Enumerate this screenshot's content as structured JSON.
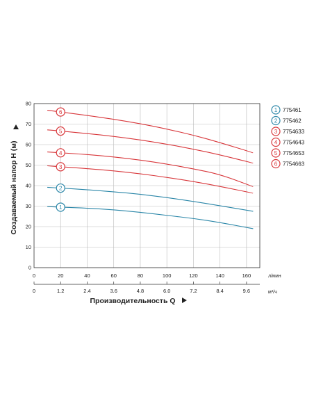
{
  "chart_data": {
    "type": "line",
    "title": "",
    "ylabel": "Создаваемый напор H (м)",
    "xlabel": "Производительность Q",
    "xunit_primary": "л/мин",
    "xunit_secondary": "м³/ч",
    "ylim": [
      0,
      80
    ],
    "xlim": [
      0,
      170
    ],
    "grid": true,
    "legend_position": "right",
    "y_ticks": [
      "0",
      "10",
      "20",
      "30",
      "40",
      "50",
      "60",
      "70",
      "80"
    ],
    "x_ticks_primary": [
      "0",
      "20",
      "40",
      "60",
      "80",
      "100",
      "120",
      "140",
      "160"
    ],
    "x_ticks_secondary": [
      "0",
      "1.2",
      "2.4",
      "3.6",
      "4.8",
      "6.0",
      "7.2",
      "8.4",
      "9.6"
    ],
    "x": [
      20,
      40,
      60,
      80,
      100,
      120,
      140,
      165
    ],
    "series": [
      {
        "name": "775461",
        "badge": "1",
        "color": "#2a86a8",
        "values": [
          29.5,
          29,
          28.2,
          27,
          25.5,
          24,
          22,
          19
        ]
      },
      {
        "name": "775462",
        "badge": "2",
        "color": "#2a86a8",
        "values": [
          38.8,
          38,
          37,
          35.8,
          34.2,
          32.3,
          30.2,
          27.5
        ]
      },
      {
        "name": "7754633",
        "badge": "3",
        "color": "#d8363a",
        "values": [
          49.2,
          48.3,
          47.2,
          45.8,
          44,
          42,
          39.6,
          36.3
        ]
      },
      {
        "name": "7754643",
        "badge": "4",
        "color": "#d8363a",
        "values": [
          56,
          55.2,
          54,
          52.5,
          50.5,
          48.2,
          45.5,
          39.5
        ]
      },
      {
        "name": "7754653",
        "badge": "5",
        "color": "#d8363a",
        "values": [
          66.6,
          65.4,
          64,
          62.3,
          60.2,
          57.8,
          55,
          51
        ]
      },
      {
        "name": "7754663",
        "badge": "6",
        "color": "#d8363a",
        "values": [
          75.9,
          74.2,
          72.4,
          70.2,
          67.6,
          64.6,
          61,
          56
        ]
      }
    ]
  }
}
